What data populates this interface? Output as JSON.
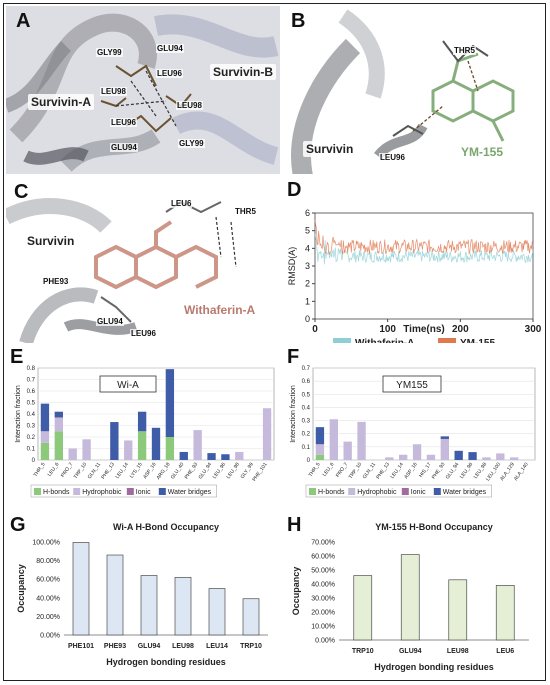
{
  "panels": {
    "A": {
      "letter": "A",
      "labels": {
        "chain_a": "Survivin-A",
        "chain_b": "Survivin-B"
      },
      "residues": [
        "GLY99",
        "GLU94",
        "LEU96",
        "LEU98",
        "LEU98",
        "LEU96",
        "GLU94",
        "GLY99"
      ]
    },
    "B": {
      "letter": "B",
      "labels": {
        "protein": "Survivin",
        "ligand": "YM-155"
      },
      "residues": [
        "THR5",
        "LEU96"
      ]
    },
    "C": {
      "letter": "C",
      "labels": {
        "protein": "Survivin",
        "ligand": "Withaferin-A"
      },
      "residues": [
        "LEU6",
        "THR5",
        "PHE93",
        "GLU94",
        "LEU96"
      ]
    },
    "D": {
      "letter": "D"
    },
    "E": {
      "letter": "E"
    },
    "F": {
      "letter": "F"
    },
    "G": {
      "letter": "G"
    },
    "H": {
      "letter": "H"
    }
  },
  "chart_data": [
    {
      "id": "D",
      "type": "line",
      "xlabel": "Time(ns)",
      "ylabel": "RMSD(A)",
      "xlim": [
        0,
        300
      ],
      "ylim": [
        0,
        6
      ],
      "xticks": [
        0,
        100,
        200,
        300
      ],
      "yticks": [
        0,
        1,
        2,
        3,
        4,
        5,
        6
      ],
      "series": [
        {
          "name": "Withaferin-A",
          "color": "#8ecfd3",
          "mean": 3.55,
          "amplitude": 0.35,
          "start": 4.8
        },
        {
          "name": "YM-155",
          "color": "#e07850",
          "mean": 4.1,
          "amplitude": 0.4,
          "start": 5.6
        }
      ],
      "legend": "bottom"
    },
    {
      "id": "E",
      "type": "bar",
      "stacked": true,
      "inset_label": "Wi-A",
      "ylabel": "Interaction fraction",
      "ylim": [
        0,
        0.8
      ],
      "yticks": [
        0,
        0.1,
        0.2,
        0.3,
        0.4,
        0.5,
        0.6,
        0.7,
        0.8
      ],
      "categories": [
        "THR_5",
        "LEU_6",
        "PRO_7",
        "TRP_10",
        "GLN_11",
        "PHE_13",
        "LEU_14",
        "LYS_15",
        "ASP_16",
        "ARG_18",
        "GLU_40",
        "PHE_93",
        "GLU_94",
        "LEU_96",
        "LEU_98",
        "GLY_99",
        "PHE_101"
      ],
      "series": [
        {
          "name": "H-bonds",
          "color": "#8cc97b",
          "values": [
            0.15,
            0.25,
            0,
            0,
            0,
            0,
            0,
            0.25,
            0,
            0.2,
            0,
            0,
            0,
            0,
            0,
            0,
            0
          ]
        },
        {
          "name": "Hydrophobic",
          "color": "#c5b9dc",
          "values": [
            0.1,
            0.12,
            0.1,
            0.18,
            0,
            0,
            0.17,
            0,
            0,
            0,
            0,
            0.26,
            0,
            0,
            0.07,
            0,
            0.45
          ]
        },
        {
          "name": "Ionic",
          "color": "#a06c9d",
          "values": [
            0,
            0,
            0,
            0,
            0,
            0,
            0,
            0,
            0,
            0,
            0,
            0,
            0,
            0,
            0,
            0,
            0
          ]
        },
        {
          "name": "Water bridges",
          "color": "#3f5ca8",
          "values": [
            0.24,
            0.05,
            0,
            0,
            0,
            0.33,
            0,
            0.17,
            0.28,
            0.59,
            0.07,
            0,
            0.06,
            0.05,
            0,
            0,
            0
          ]
        }
      ],
      "legend": "bottom"
    },
    {
      "id": "F",
      "type": "bar",
      "stacked": true,
      "inset_label": "YM155",
      "ylabel": "Interaction fraction",
      "ylim": [
        0,
        0.7
      ],
      "yticks": [
        0,
        0.1,
        0.2,
        0.3,
        0.4,
        0.5,
        0.6,
        0.7
      ],
      "categories": [
        "THR_5",
        "LEU_6",
        "PRO_7",
        "TRP_10",
        "GLN_11",
        "PHE_13",
        "LEU_14",
        "ASP_16",
        "HIS_17",
        "PHE_93",
        "GLU_94",
        "LEU_96",
        "LEU_98",
        "LEU_100",
        "ALA_129",
        "ALA_140"
      ],
      "series": [
        {
          "name": "H-bonds",
          "color": "#8cc97b",
          "values": [
            0.04,
            0,
            0,
            0,
            0,
            0,
            0,
            0,
            0,
            0,
            0,
            0,
            0,
            0,
            0,
            0
          ]
        },
        {
          "name": "Hydrophobic",
          "color": "#c5b9dc",
          "values": [
            0.08,
            0.31,
            0.14,
            0.29,
            0,
            0.02,
            0.04,
            0.12,
            0.04,
            0.16,
            0,
            0,
            0.02,
            0.05,
            0.02,
            0
          ]
        },
        {
          "name": "Ionic",
          "color": "#a06c9d",
          "values": [
            0,
            0,
            0,
            0,
            0,
            0,
            0,
            0,
            0,
            0,
            0,
            0,
            0,
            0,
            0,
            0
          ]
        },
        {
          "name": "Water bridges",
          "color": "#3f5ca8",
          "values": [
            0.13,
            0,
            0,
            0,
            0,
            0,
            0,
            0,
            0,
            0.02,
            0.07,
            0.06,
            0,
            0,
            0,
            0
          ]
        }
      ],
      "legend": "bottom"
    },
    {
      "id": "G",
      "type": "bar",
      "title": "Wi-A H-Bond Occupancy",
      "ylabel": "Occupancy",
      "xlabel": "Hydrogen bonding residues",
      "ylim": [
        0,
        100
      ],
      "yticks": [
        0,
        20,
        40,
        60,
        80,
        100
      ],
      "tick_suffix": "%",
      "tick_decimals": 2,
      "color": "#dde6f3",
      "stroke": "#4d4d4d",
      "categories": [
        "PHE101",
        "PHE93",
        "GLU94",
        "LEU98",
        "LEU14",
        "TRP10"
      ],
      "values": [
        99.5,
        86,
        64,
        62,
        50,
        39
      ]
    },
    {
      "id": "H",
      "type": "bar",
      "title": "YM-155 H-Bond Occupancy",
      "ylabel": "Occupancy",
      "xlabel": "Hydrogen bonding residues",
      "ylim": [
        0,
        70
      ],
      "yticks": [
        0,
        10,
        20,
        30,
        40,
        50,
        60,
        70
      ],
      "tick_suffix": "%",
      "tick_decimals": 2,
      "color": "#e4efd6",
      "stroke": "#4d4d4d",
      "categories": [
        "TRP10",
        "GLU94",
        "LEU98",
        "LEU6"
      ],
      "values": [
        46,
        61,
        43,
        39
      ]
    }
  ]
}
